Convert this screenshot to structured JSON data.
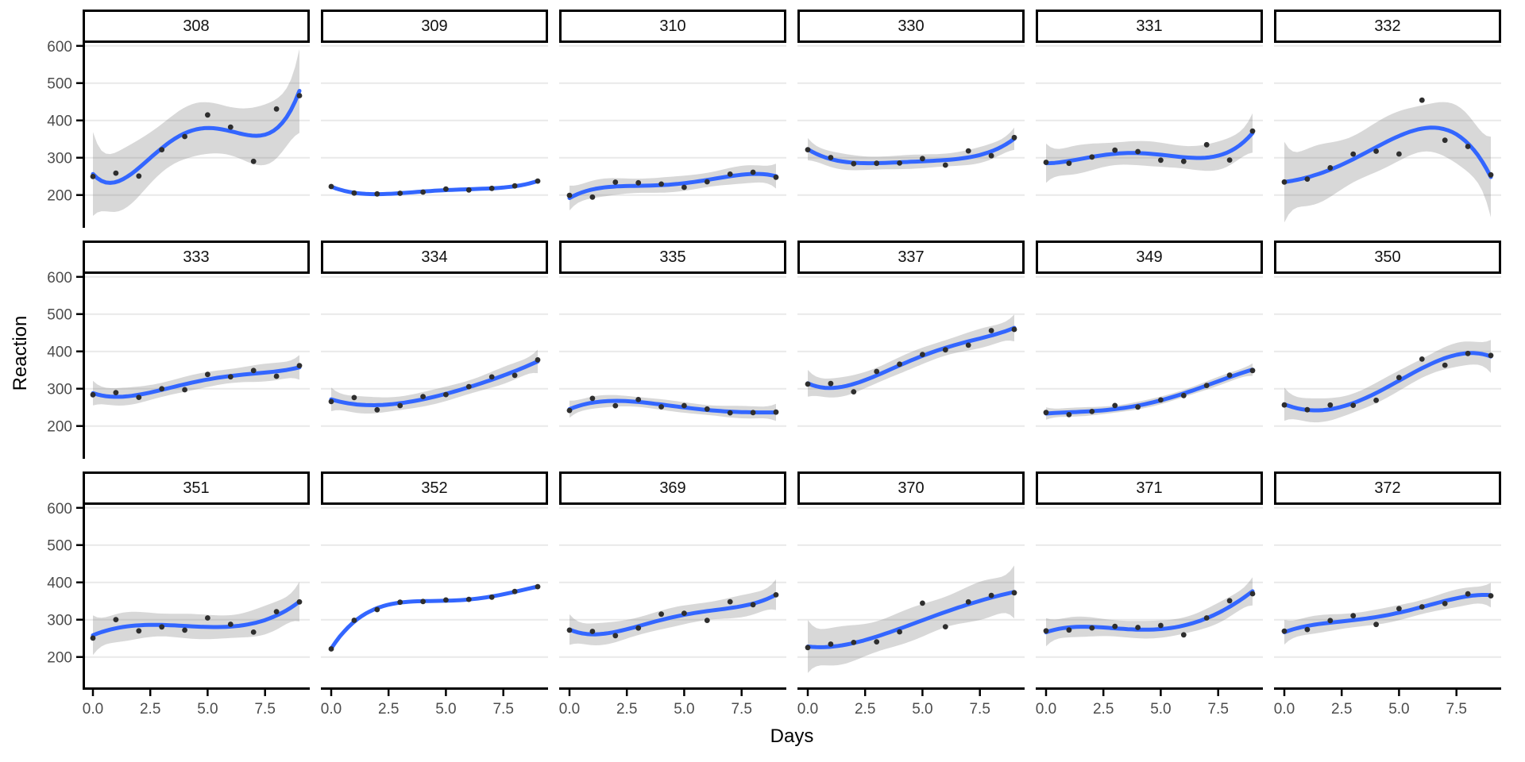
{
  "axes": {
    "x_title": "Days",
    "y_title": "Reaction",
    "x_tick_labels": [
      "0.0",
      "2.5",
      "5.0",
      "7.5"
    ],
    "x_tick_values": [
      0,
      2.5,
      5,
      7.5
    ],
    "y_tick_labels": [
      "200",
      "300",
      "400",
      "500",
      "600"
    ],
    "y_tick_values": [
      200,
      300,
      400,
      500,
      600
    ]
  },
  "chart_data": {
    "type": "scatter",
    "smoother": "loess smooth line with 95% confidence ribbon per facet",
    "title": "",
    "xlabel": "Days",
    "ylabel": "Reaction",
    "x": [
      0,
      1,
      2,
      3,
      4,
      5,
      6,
      7,
      8,
      9
    ],
    "xlim": [
      -0.45,
      9.45
    ],
    "ylim": [
      112,
      608
    ],
    "grid": "horizontal major gridlines only",
    "legend": "none",
    "facet_variable": "Subject",
    "facet_layout": {
      "rows": 3,
      "cols": 6
    },
    "facets": [
      {
        "label": "308",
        "values": [
          249.6,
          258.7,
          250.8,
          321.4,
          356.9,
          414.7,
          382.2,
          290.1,
          430.6,
          466.4
        ]
      },
      {
        "label": "309",
        "values": [
          222.7,
          205.3,
          203.0,
          204.7,
          207.7,
          216.0,
          213.6,
          217.7,
          224.3,
          237.3
        ]
      },
      {
        "label": "310",
        "values": [
          199.1,
          194.3,
          234.3,
          232.8,
          229.3,
          220.5,
          235.4,
          255.8,
          261.0,
          247.5
        ]
      },
      {
        "label": "330",
        "values": [
          321.5,
          300.4,
          283.9,
          285.1,
          285.8,
          297.6,
          280.2,
          318.3,
          305.3,
          354.0
        ]
      },
      {
        "label": "331",
        "values": [
          287.6,
          285.0,
          301.8,
          320.1,
          316.3,
          293.3,
          290.1,
          334.8,
          293.7,
          371.6
        ]
      },
      {
        "label": "332",
        "values": [
          234.9,
          242.8,
          273.0,
          309.8,
          317.5,
          310.0,
          454.2,
          346.8,
          330.3,
          253.9
        ]
      },
      {
        "label": "333",
        "values": [
          283.8,
          289.6,
          276.8,
          299.8,
          297.2,
          338.2,
          332.0,
          348.8,
          333.4,
          362.0
        ]
      },
      {
        "label": "334",
        "values": [
          265.5,
          276.2,
          243.4,
          254.7,
          279.0,
          284.2,
          305.5,
          331.5,
          335.7,
          377.3
        ]
      },
      {
        "label": "335",
        "values": [
          241.6,
          273.9,
          254.5,
          270.8,
          251.5,
          254.6,
          245.5,
          235.3,
          235.8,
          237.2
        ]
      },
      {
        "label": "337",
        "values": [
          312.4,
          313.8,
          291.6,
          346.1,
          365.7,
          391.8,
          404.3,
          416.7,
          455.9,
          458.9
        ]
      },
      {
        "label": "349",
        "values": [
          236.1,
          230.3,
          238.9,
          254.9,
          250.7,
          269.8,
          281.6,
          308.8,
          336.3,
          348.8
        ]
      },
      {
        "label": "350",
        "values": [
          256.3,
          243.5,
          256.2,
          255.5,
          268.9,
          329.7,
          379.4,
          362.9,
          394.5,
          389.1
        ]
      },
      {
        "label": "351",
        "values": [
          250.5,
          300.1,
          269.9,
          280.6,
          271.8,
          304.6,
          287.7,
          266.6,
          321.5,
          347.6
        ]
      },
      {
        "label": "352",
        "values": [
          221.7,
          298.2,
          326.9,
          346.9,
          348.7,
          352.8,
          354.4,
          360.4,
          375.6,
          388.5
        ]
      },
      {
        "label": "369",
        "values": [
          271.9,
          268.4,
          257.2,
          277.7,
          314.8,
          317.2,
          298.1,
          348.1,
          340.3,
          366.5
        ]
      },
      {
        "label": "370",
        "values": [
          225.3,
          234.5,
          238.9,
          240.5,
          267.5,
          344.2,
          281.1,
          347.6,
          365.2,
          372.2
        ]
      },
      {
        "label": "371",
        "values": [
          269.9,
          272.4,
          277.9,
          281.8,
          279.2,
          284.5,
          259.3,
          304.6,
          350.8,
          369.5
        ]
      },
      {
        "label": "372",
        "values": [
          269.4,
          273.5,
          297.6,
          310.6,
          287.2,
          329.6,
          334.5,
          343.2,
          369.1,
          364.1
        ]
      }
    ]
  },
  "style": {
    "colors": {
      "smooth_line": "#3366FF",
      "ribbon": "rgba(127,127,127,0.30)",
      "point": "#2E2E2E",
      "gridline": "#E9E9E9",
      "axis_line": "#000000",
      "tick_mark": "#000000",
      "tick_label": "#4D4D4D",
      "strip_border": "#000000",
      "strip_background": "#FFFFFF",
      "strip_text": "#111111",
      "panel_background": "#FFFFFF",
      "axis_title": "#000000"
    }
  }
}
